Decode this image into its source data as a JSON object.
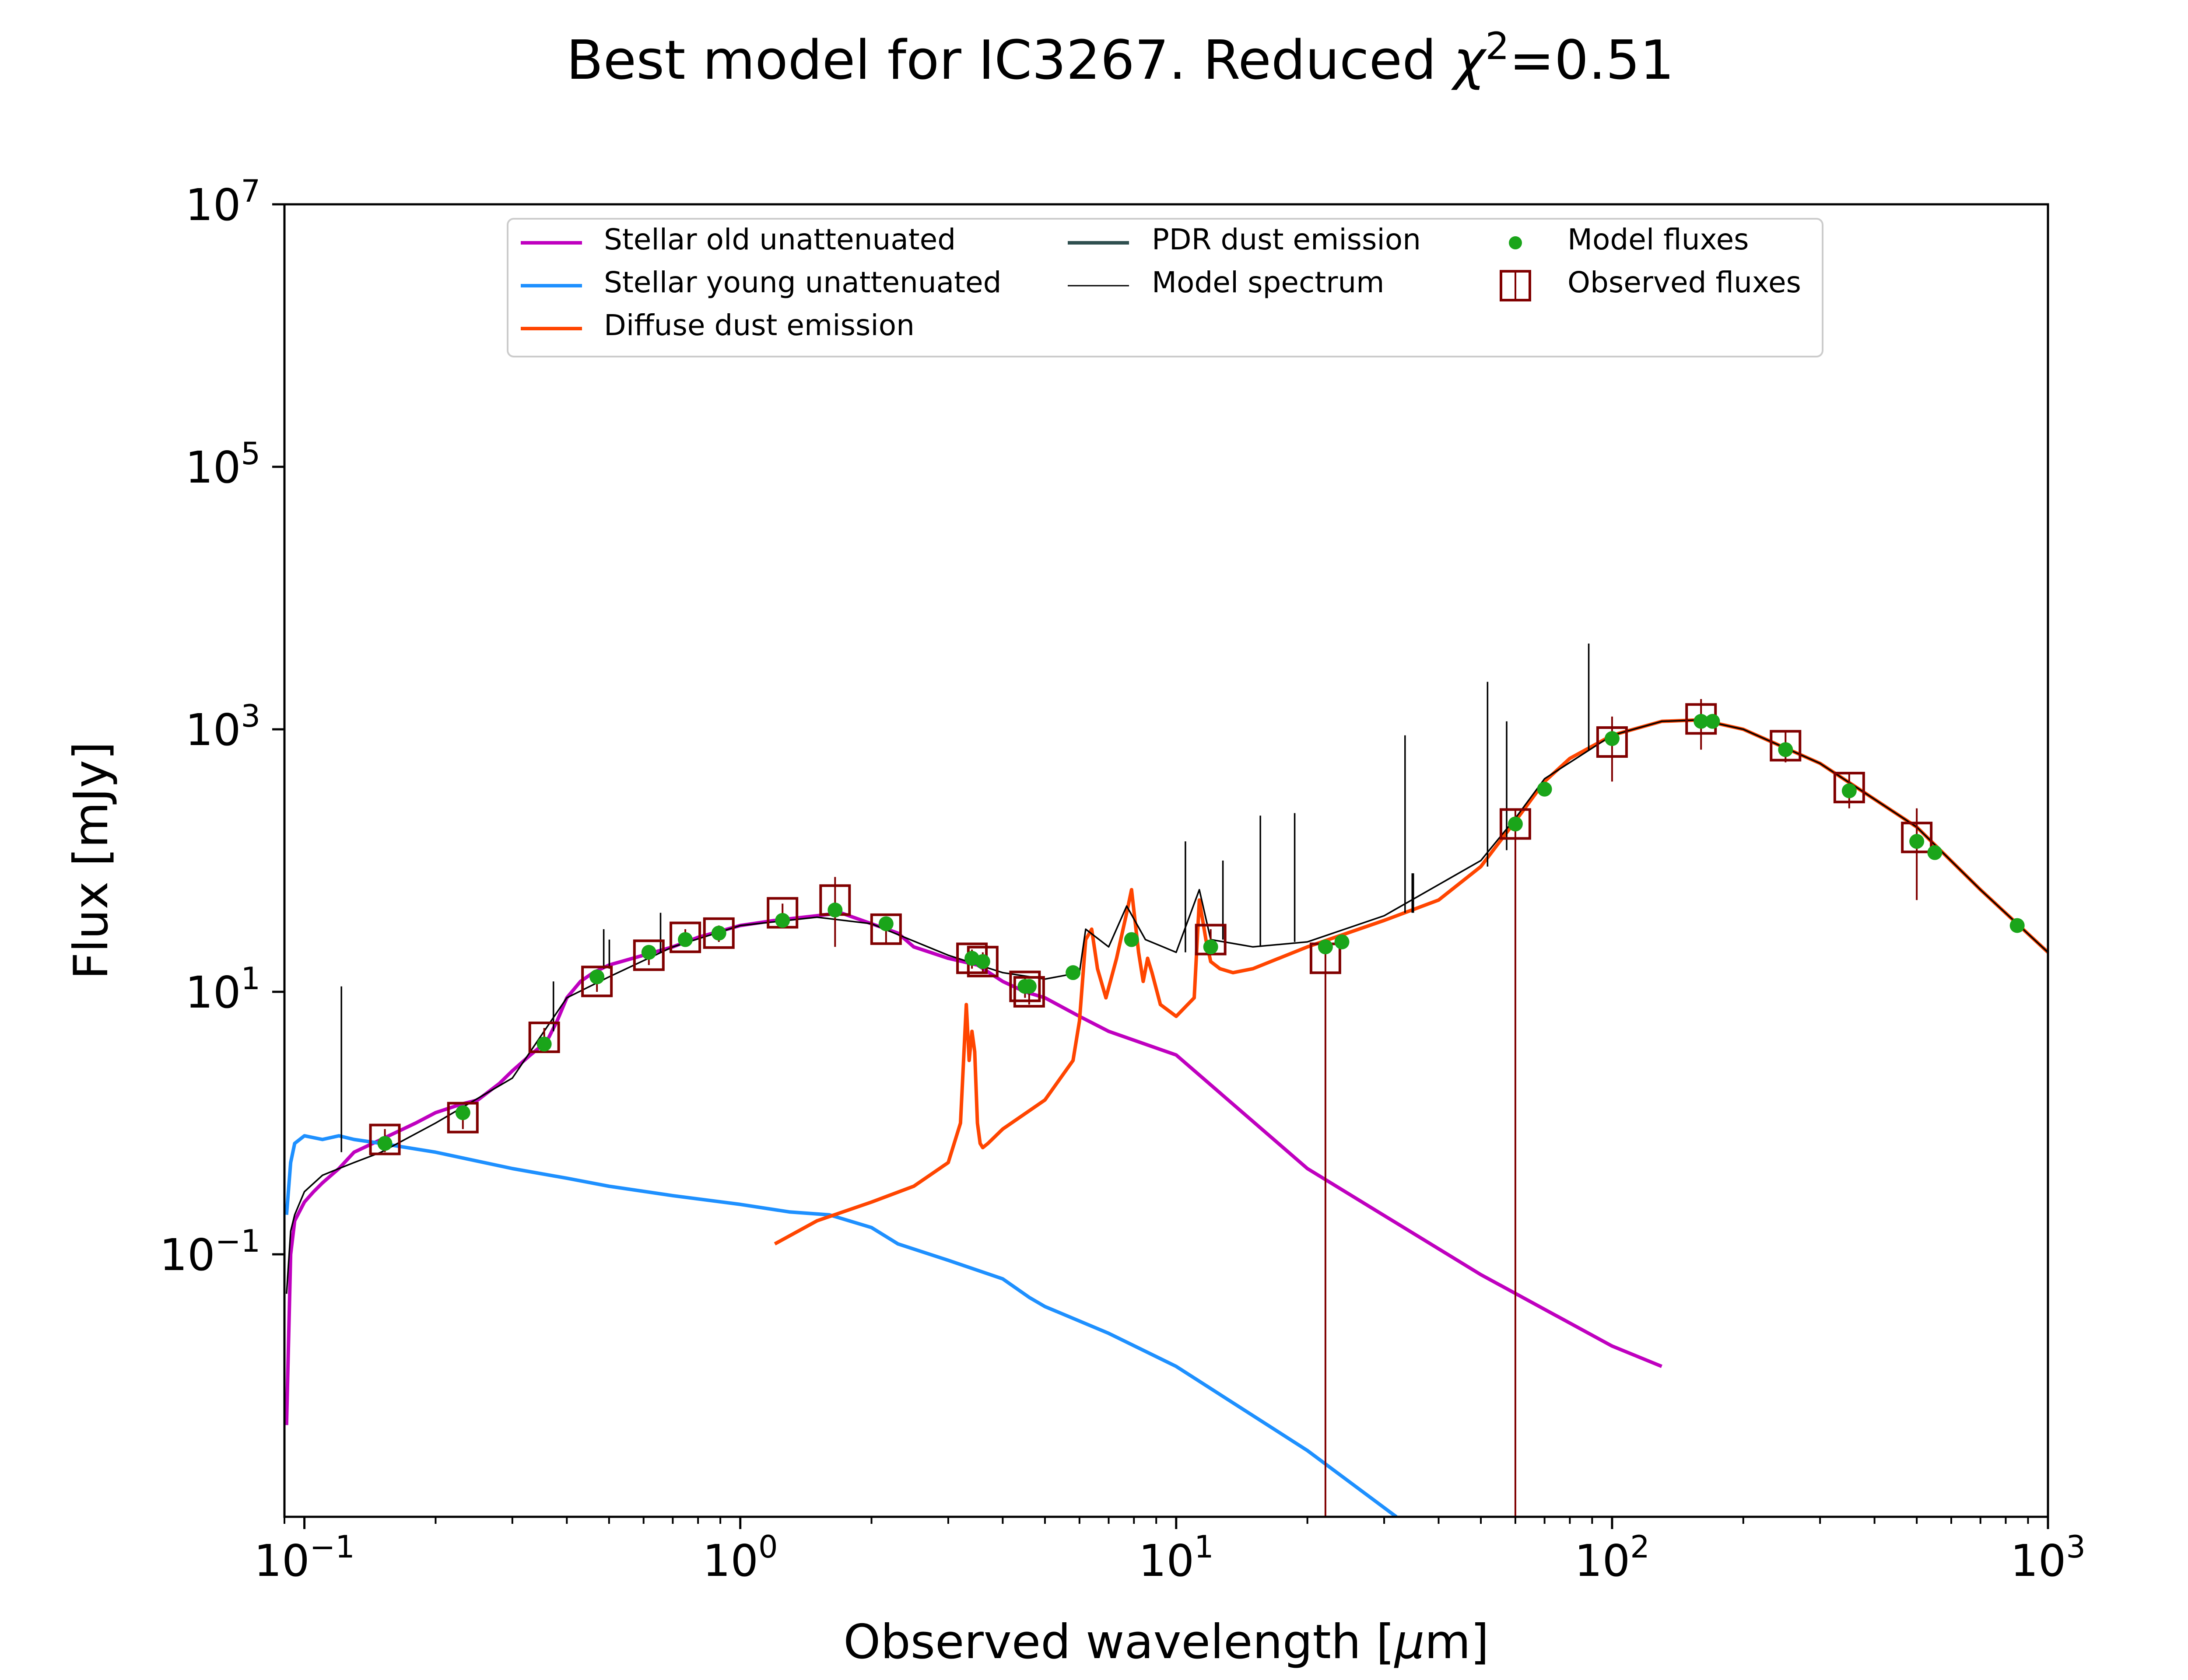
{
  "colors": {
    "stellar_old": "#bf00bf",
    "stellar_young": "#1e90ff",
    "diffuse_dust": "#ff4500",
    "pdr_dust": "#2f4f4f",
    "model_spectrum": "#000000",
    "model_fluxes": "#1aa51a",
    "observed_fluxes": "#800000"
  },
  "chart_data": {
    "type": "line",
    "title": {
      "prefix": "Best model for IC3267. Reduced ",
      "symbol": "χ",
      "sup": "2",
      "suffix": "=0.51"
    },
    "xlabel": {
      "prefix": "Observed wavelength [",
      "mu": "μ",
      "suffix": "m]"
    },
    "ylabel": "Flux [mJy]",
    "xscale": "log",
    "yscale": "log",
    "xlim": [
      0.09,
      1000
    ],
    "ylim": [
      0.001,
      10000000
    ],
    "x_ticks": [
      {
        "value": 0.1,
        "base": "10",
        "exp": "−1"
      },
      {
        "value": 1,
        "base": "10",
        "exp": "0"
      },
      {
        "value": 10,
        "base": "10",
        "exp": "1"
      },
      {
        "value": 100,
        "base": "10",
        "exp": "2"
      },
      {
        "value": 1000,
        "base": "10",
        "exp": "3"
      }
    ],
    "y_ticks": [
      {
        "value": 0.1,
        "base": "10",
        "exp": "−1"
      },
      {
        "value": 10,
        "base": "10",
        "exp": "1"
      },
      {
        "value": 1000,
        "base": "10",
        "exp": "3"
      },
      {
        "value": 100000,
        "base": "10",
        "exp": "5"
      },
      {
        "value": 10000000,
        "base": "10",
        "exp": "7"
      }
    ],
    "legend_position": "top-center",
    "legend": [
      {
        "label": "Stellar old unattenuated",
        "kind": "line",
        "color_key": "stellar_old"
      },
      {
        "label": "Stellar young unattenuated",
        "kind": "line",
        "color_key": "stellar_young"
      },
      {
        "label": "Diffuse dust emission",
        "kind": "line",
        "color_key": "diffuse_dust"
      },
      {
        "label": "PDR dust emission",
        "kind": "line",
        "color_key": "pdr_dust"
      },
      {
        "label": "Model spectrum",
        "kind": "thin-line",
        "color_key": "model_spectrum"
      },
      {
        "label": "Model fluxes",
        "kind": "dot",
        "color_key": "model_fluxes"
      },
      {
        "label": "Observed fluxes",
        "kind": "square",
        "color_key": "observed_fluxes"
      }
    ],
    "series": [
      {
        "name": "Stellar old unattenuated",
        "color_key": "stellar_old",
        "x": [
          0.091,
          0.093,
          0.095,
          0.1,
          0.105,
          0.11,
          0.12,
          0.13,
          0.15,
          0.18,
          0.2,
          0.23,
          0.25,
          0.28,
          0.3,
          0.33,
          0.36,
          0.38,
          0.4,
          0.43,
          0.46,
          0.5,
          0.6,
          0.7,
          0.8,
          1.0,
          1.2,
          1.5,
          1.7,
          2.0,
          2.3,
          2.5,
          3.0,
          3.5,
          4.0,
          4.5,
          5.0,
          6.0,
          7.0,
          10.0,
          20.0,
          50.0,
          100.0,
          130.0
        ],
        "y": [
          0.005,
          0.1,
          0.18,
          0.25,
          0.3,
          0.35,
          0.45,
          0.6,
          0.75,
          1.0,
          1.2,
          1.4,
          1.5,
          2.0,
          2.5,
          3.3,
          4.2,
          6.0,
          9.0,
          12.0,
          14.0,
          16.0,
          19.0,
          22.0,
          26.0,
          32.0,
          35.0,
          38.0,
          40.0,
          33.0,
          28.0,
          22.0,
          18.0,
          16.0,
          12.0,
          10.0,
          9.0,
          6.5,
          5.0,
          3.3,
          0.45,
          0.07,
          0.02,
          0.014
        ]
      },
      {
        "name": "Stellar young unattenuated",
        "color_key": "stellar_young",
        "x": [
          0.091,
          0.093,
          0.095,
          0.1,
          0.11,
          0.12,
          0.13,
          0.15,
          0.2,
          0.3,
          0.4,
          0.5,
          0.7,
          1.0,
          1.3,
          1.6,
          2.0,
          2.3,
          3.0,
          4.0,
          4.6,
          5.0,
          7.0,
          10.0,
          20.0,
          32.0
        ],
        "y": [
          0.2,
          0.5,
          0.7,
          0.8,
          0.75,
          0.8,
          0.75,
          0.7,
          0.6,
          0.45,
          0.38,
          0.33,
          0.28,
          0.24,
          0.21,
          0.2,
          0.16,
          0.12,
          0.09,
          0.065,
          0.047,
          0.04,
          0.025,
          0.014,
          0.0032,
          0.001
        ]
      },
      {
        "name": "Diffuse dust emission",
        "color_key": "diffuse_dust",
        "x": [
          1.2,
          1.5,
          2.0,
          2.5,
          3.0,
          3.2,
          3.3,
          3.35,
          3.4,
          3.45,
          3.5,
          3.55,
          3.6,
          3.7,
          4.0,
          5.0,
          5.8,
          6.0,
          6.2,
          6.4,
          6.6,
          6.9,
          7.3,
          7.7,
          7.9,
          8.2,
          8.4,
          8.6,
          8.8,
          9.2,
          10.0,
          11.0,
          11.3,
          11.7,
          12.0,
          12.6,
          13.5,
          15.0,
          20.0,
          30.0,
          40.0,
          50.0,
          60.0,
          70.0,
          80.0,
          100.0,
          130.0,
          160.0,
          200.0,
          300.0,
          500.0,
          700.0,
          1000.0
        ],
        "y": [
          0.12,
          0.18,
          0.25,
          0.33,
          0.5,
          1.0,
          8.0,
          3.0,
          5.0,
          3.5,
          1.0,
          0.7,
          0.65,
          0.7,
          0.9,
          1.5,
          3.0,
          6.0,
          25.0,
          30.0,
          15.0,
          9.0,
          18.0,
          40.0,
          60.0,
          20.0,
          12.0,
          18.0,
          14.0,
          8.0,
          6.5,
          9.0,
          50.0,
          25.0,
          17.0,
          15.0,
          14.0,
          15.0,
          22.0,
          35.0,
          50.0,
          90.0,
          200.0,
          400.0,
          600.0,
          900.0,
          1150.0,
          1180.0,
          1000.0,
          550.0,
          180.0,
          60.0,
          20.0
        ]
      },
      {
        "name": "Model spectrum",
        "color_key": "model_spectrum",
        "x": [
          0.091,
          0.093,
          0.095,
          0.1,
          0.11,
          0.12,
          0.13,
          0.15,
          0.2,
          0.3,
          0.4,
          0.5,
          0.7,
          1.0,
          1.5,
          2.0,
          3.0,
          4.0,
          5.0,
          6.0,
          6.2,
          7.0,
          7.7,
          8.5,
          10.0,
          11.3,
          12.0,
          15.0,
          20.0,
          30.0,
          50.0,
          60.0,
          70.0,
          100.0,
          130.0,
          160.0,
          200.0,
          300.0,
          500.0,
          700.0,
          1000.0
        ],
        "y": [
          0.05,
          0.15,
          0.2,
          0.3,
          0.4,
          0.45,
          0.5,
          0.6,
          1.0,
          2.2,
          9.0,
          13.0,
          22.0,
          32.0,
          37.0,
          33.0,
          19.0,
          14.0,
          12.5,
          14.0,
          30.0,
          22.0,
          45.0,
          25.0,
          20.0,
          60.0,
          25.0,
          22.0,
          24.0,
          38.0,
          100.0,
          210.0,
          420.0,
          900.0,
          1150.0,
          1180.0,
          1000.0,
          550.0,
          180.0,
          60.0,
          20.0
        ]
      }
    ],
    "model_spectrum_spikes": [
      {
        "x": 0.1216,
        "y0": 0.6,
        "y1": 11.0
      },
      {
        "x": 0.3727,
        "y0": 5.0,
        "y1": 12.0
      },
      {
        "x": 0.4861,
        "y0": 15.0,
        "y1": 30.0
      },
      {
        "x": 0.5007,
        "y0": 15.0,
        "y1": 25.0
      },
      {
        "x": 0.6563,
        "y0": 20.0,
        "y1": 40.0
      },
      {
        "x": 10.5,
        "y0": 20.0,
        "y1": 140.0
      },
      {
        "x": 12.8,
        "y0": 25.0,
        "y1": 100.0
      },
      {
        "x": 15.6,
        "y0": 22.0,
        "y1": 220.0
      },
      {
        "x": 18.7,
        "y0": 24.0,
        "y1": 230.0
      },
      {
        "x": 33.5,
        "y0": 40.0,
        "y1": 900.0
      },
      {
        "x": 34.8,
        "y0": 40.0,
        "y1": 80.0
      },
      {
        "x": 35.0,
        "y0": 40.0,
        "y1": 80.0
      },
      {
        "x": 51.8,
        "y0": 90.0,
        "y1": 2300.0
      },
      {
        "x": 57.3,
        "y0": 120.0,
        "y1": 1150.0
      },
      {
        "x": 88.4,
        "y0": 700.0,
        "y1": 4500.0
      }
    ],
    "model_fluxes": {
      "x": [
        0.153,
        0.231,
        0.355,
        0.469,
        0.617,
        0.748,
        0.893,
        1.25,
        1.65,
        2.16,
        3.4,
        3.6,
        4.5,
        4.6,
        5.8,
        7.9,
        12.0,
        22.0,
        24.0,
        60.0,
        70.0,
        100.0,
        160.0,
        170.0,
        250.0,
        350.0,
        500.0,
        550.0,
        850.0
      ],
      "y": [
        0.7,
        1.2,
        4.0,
        13.0,
        20.0,
        25.0,
        28.0,
        35.0,
        42.0,
        33.0,
        18.0,
        17.0,
        11.0,
        11.0,
        14.0,
        25.0,
        22.0,
        22.0,
        24.0,
        190.0,
        350.0,
        850.0,
        1150.0,
        1150.0,
        700.0,
        340.0,
        140.0,
        115.0,
        32.0
      ]
    },
    "observed_fluxes": {
      "x": [
        0.153,
        0.231,
        0.355,
        0.469,
        0.617,
        0.748,
        0.893,
        1.25,
        1.65,
        2.16,
        3.4,
        3.6,
        4.5,
        4.6,
        12.0,
        22.0,
        60.0,
        100.0,
        160.0,
        250.0,
        350.0,
        500.0
      ],
      "y": [
        0.75,
        1.1,
        4.5,
        12.0,
        19.0,
        26.0,
        28.0,
        40.0,
        50.0,
        30.0,
        18.0,
        17.0,
        11.0,
        10.0,
        25.0,
        18.0,
        190.0,
        800.0,
        1200.0,
        750.0,
        360.0,
        150.0
      ],
      "err_lo": [
        0.6,
        0.9,
        3.7,
        10.0,
        16.0,
        22.0,
        24.0,
        33.0,
        22.0,
        23.0,
        15.0,
        14.0,
        9.0,
        8.0,
        20.0,
        0.001,
        0.001,
        400.0,
        700.0,
        560.0,
        250.0,
        50.0
      ],
      "err_hi": [
        0.9,
        1.3,
        5.3,
        14.0,
        22.0,
        30.0,
        32.0,
        47.0,
        75.0,
        37.0,
        21.0,
        20.0,
        13.0,
        12.0,
        30.0,
        24.0,
        240.0,
        1250.0,
        1700.0,
        950.0,
        460.0,
        250.0
      ]
    }
  }
}
